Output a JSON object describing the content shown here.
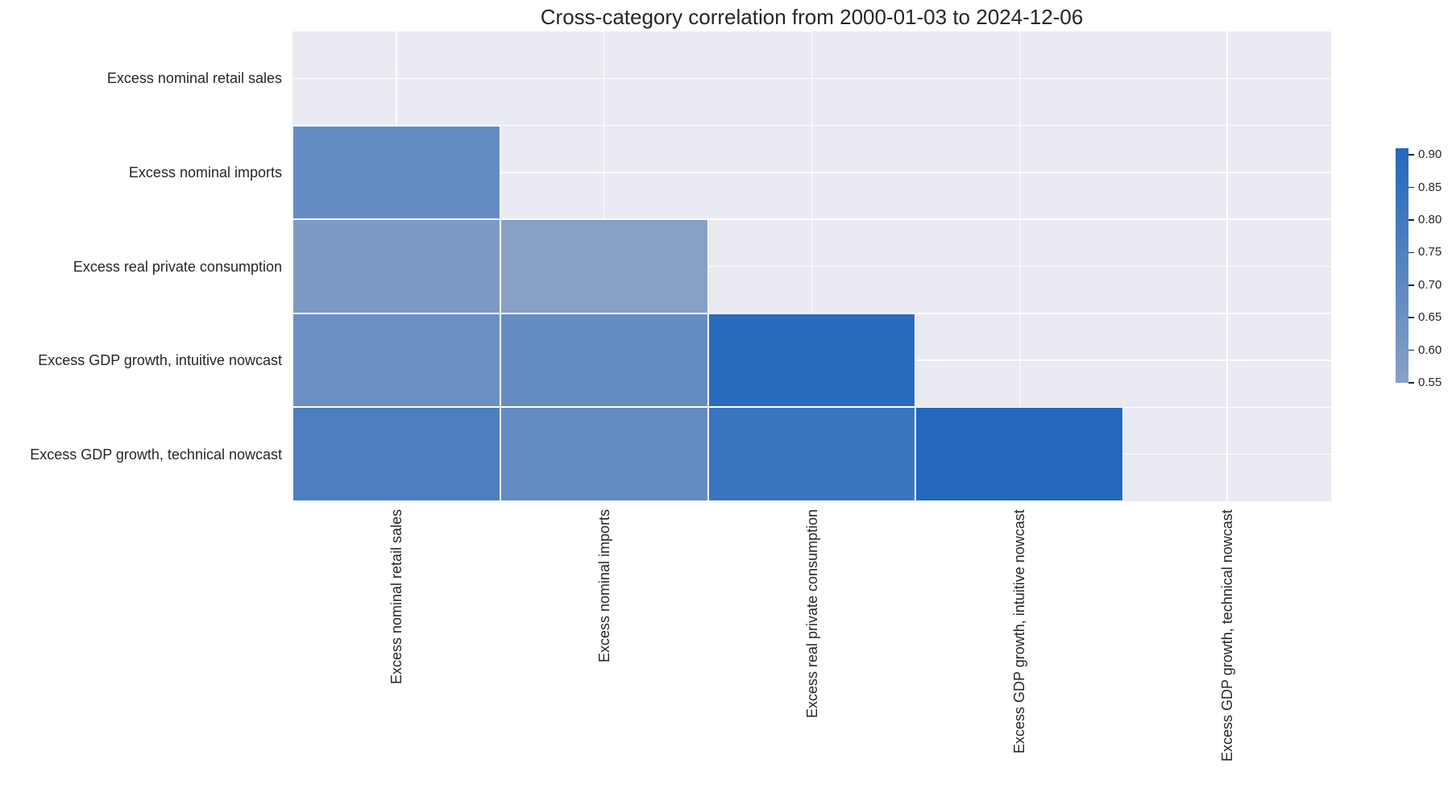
{
  "chart_data": {
    "type": "heatmap",
    "title": "Cross-category correlation from 2000-01-03 to 2024-12-06",
    "xlabel": "",
    "ylabel": "",
    "categories": [
      "Excess nominal retail sales",
      "Excess nominal imports",
      "Excess real private consumption",
      "Excess GDP growth, intuitive nowcast",
      "Excess GDP growth, technical nowcast"
    ],
    "mask": "upper triangle including diagonal",
    "matrix": [
      [
        null,
        null,
        null,
        null,
        null
      ],
      [
        0.68,
        null,
        null,
        null,
        null
      ],
      [
        0.59,
        0.55,
        null,
        null,
        null
      ],
      [
        0.65,
        0.67,
        0.89,
        null,
        null
      ],
      [
        0.76,
        0.68,
        0.83,
        0.91,
        null
      ]
    ],
    "colorbar": {
      "min": 0.55,
      "max": 0.91,
      "ticks": [
        "0.90",
        "0.85",
        "0.80",
        "0.75",
        "0.70",
        "0.65",
        "0.60",
        "0.55"
      ],
      "tick_values": [
        0.9,
        0.85,
        0.8,
        0.75,
        0.7,
        0.65,
        0.6,
        0.55
      ],
      "color_low": "#88a0c5",
      "color_high": "#2368bd"
    },
    "grid": true,
    "background": "#eaeaf2"
  }
}
